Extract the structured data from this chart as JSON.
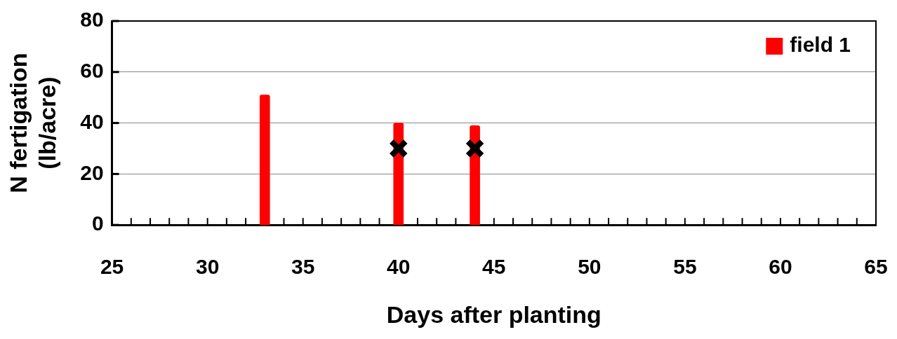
{
  "chart_data": {
    "type": "bar",
    "xlabel": "Days after planting",
    "ylabel": "N fertigation (lb/acre)",
    "x": [
      33,
      40,
      44
    ],
    "series": [
      {
        "name": "field 1",
        "color": "#ff0000",
        "values": [
          51,
          40,
          39
        ]
      },
      {
        "type": "scatter",
        "color": "#000000",
        "marker": "cross",
        "x": [
          40,
          44
        ],
        "values": [
          30,
          30
        ]
      }
    ],
    "xlim": [
      25,
      65
    ],
    "xticks": [
      25,
      {
        "value": 26,
        "label": null
      },
      {
        "value": 27,
        "label": null
      },
      {
        "value": 28,
        "label": null
      },
      {
        "value": 29,
        "label": null
      },
      30,
      {
        "value": 31,
        "label": null
      },
      {
        "value": 32,
        "label": null
      },
      {
        "value": 33,
        "label": null
      },
      {
        "value": 34,
        "label": null
      },
      35,
      {
        "value": 36,
        "label": null
      },
      {
        "value": 37,
        "label": null
      },
      {
        "value": 38,
        "label": null
      },
      {
        "value": 39,
        "label": null
      },
      40,
      {
        "value": 41,
        "label": null
      },
      {
        "value": 42,
        "label": null
      },
      {
        "value": 43,
        "label": null
      },
      {
        "value": 44,
        "label": null
      },
      45,
      {
        "value": 46,
        "label": null
      },
      {
        "value": 47,
        "label": null
      },
      {
        "value": 48,
        "label": null
      },
      {
        "value": 49,
        "label": null
      },
      50,
      {
        "value": 51,
        "label": null
      },
      {
        "value": 52,
        "label": null
      },
      {
        "value": 53,
        "label": null
      },
      {
        "value": 54,
        "label": null
      },
      55,
      {
        "value": 56,
        "label": null
      },
      {
        "value": 57,
        "label": null
      },
      {
        "value": 58,
        "label": null
      },
      {
        "value": 59,
        "label": null
      },
      60,
      {
        "value": 61,
        "label": null
      },
      {
        "value": 62,
        "label": null
      },
      {
        "value": 63,
        "label": null
      },
      {
        "value": 64,
        "label": null
      },
      65
    ],
    "ylim": [
      0,
      80
    ],
    "yticks": [
      0,
      20,
      40,
      60,
      80
    ],
    "grid": "y",
    "legend": "top right"
  }
}
